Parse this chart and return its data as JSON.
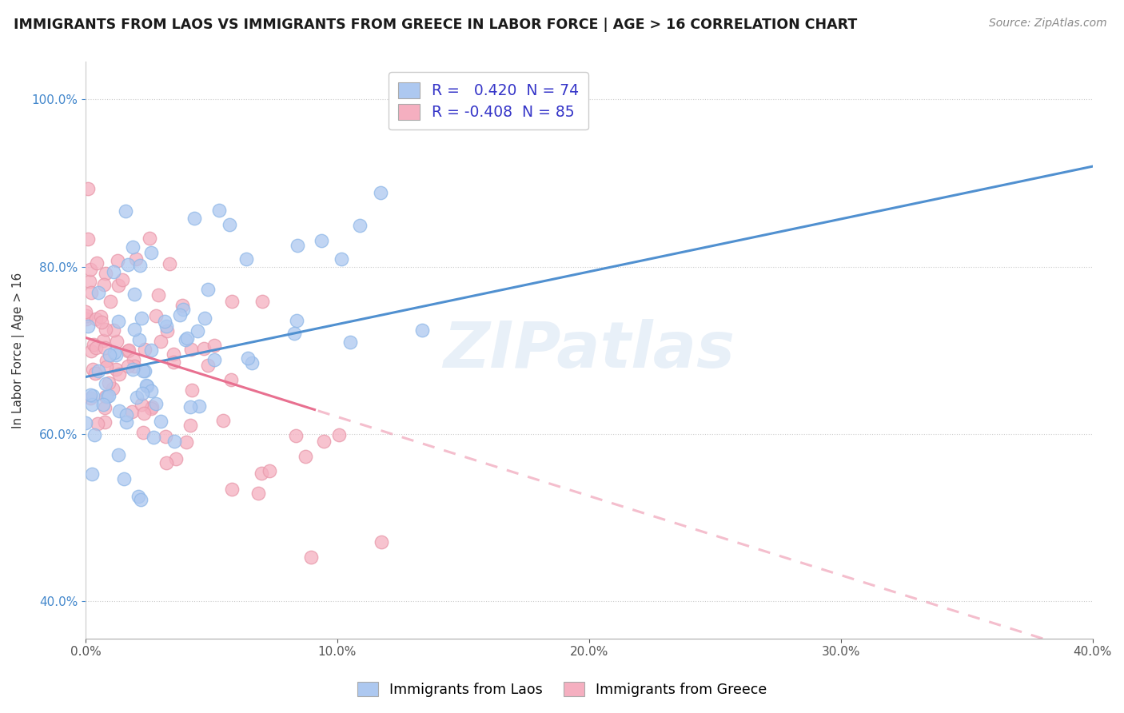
{
  "title": "IMMIGRANTS FROM LAOS VS IMMIGRANTS FROM GREECE IN LABOR FORCE | AGE > 16 CORRELATION CHART",
  "source": "Source: ZipAtlas.com",
  "ylabel": "In Labor Force | Age > 16",
  "xmin": 0.0,
  "xmax": 0.4,
  "ymin": 0.355,
  "ymax": 1.045,
  "x_ticks": [
    0.0,
    0.1,
    0.2,
    0.3,
    0.4
  ],
  "x_tick_labels": [
    "0.0%",
    "10.0%",
    "20.0%",
    "30.0%",
    "40.0%"
  ],
  "y_ticks": [
    0.4,
    0.6,
    0.8,
    1.0
  ],
  "y_tick_labels": [
    "40.0%",
    "60.0%",
    "80.0%",
    "100.0%"
  ],
  "laos_R": 0.42,
  "laos_N": 74,
  "greece_R": -0.408,
  "greece_N": 85,
  "laos_color": "#adc8f0",
  "laos_edge_color": "#90b8e8",
  "greece_color": "#f5afc0",
  "greece_edge_color": "#e898aa",
  "laos_line_color": "#5090d0",
  "greece_line_color": "#e87090",
  "watermark": "ZIPatlas",
  "legend_text_color": "#3535c8",
  "laos_seed": 7,
  "greece_seed": 13
}
